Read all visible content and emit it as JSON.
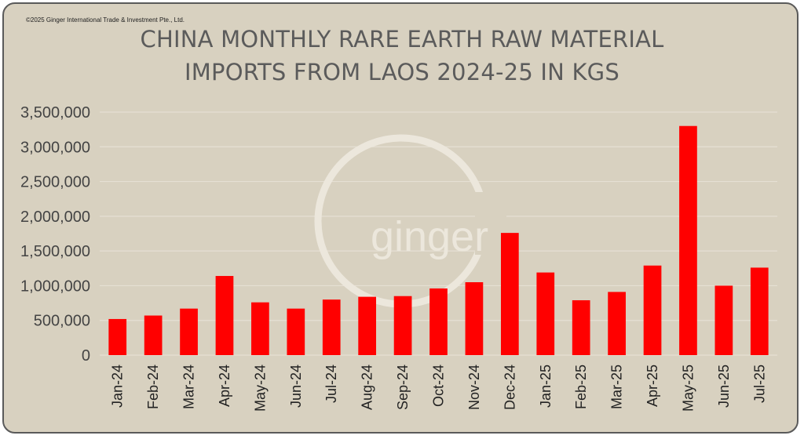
{
  "copyright": "©2025 Ginger International Trade & Investment Pte., Ltd.",
  "watermark": "ginger",
  "colors": {
    "bar": "#ff0000",
    "background": "#d8d1c0",
    "grid": "#e6e0d4",
    "title": "#5b5b5b"
  },
  "chart_data": {
    "type": "bar",
    "title_lines": [
      "CHINA MONTHLY RARE EARTH RAW MATERIAL",
      "IMPORTS FROM LAOS 2024-25 IN KGS"
    ],
    "xlabel": "",
    "ylabel": "",
    "ylim": [
      0,
      3500000
    ],
    "yticks": [
      0,
      500000,
      1000000,
      1500000,
      2000000,
      2500000,
      3000000,
      3500000
    ],
    "ytick_labels": [
      "0",
      "500,000",
      "1,000,000",
      "1,500,000",
      "2,000,000",
      "2,500,000",
      "3,000,000",
      "3,500,000"
    ],
    "grid": true,
    "legend": "none",
    "categories": [
      "Jan-24",
      "Feb-24",
      "Mar-24",
      "Apr-24",
      "May-24",
      "Jun-24",
      "Jul-24",
      "Aug-24",
      "Sep-24",
      "Oct-24",
      "Nov-24",
      "Dec-24",
      "Jan-25",
      "Feb-25",
      "Mar-25",
      "Apr-25",
      "May-25",
      "Jun-25",
      "Jul-25"
    ],
    "values": [
      520000,
      570000,
      670000,
      1140000,
      760000,
      670000,
      800000,
      840000,
      850000,
      960000,
      1050000,
      1760000,
      1190000,
      790000,
      910000,
      1290000,
      3300000,
      1000000,
      1260000
    ]
  }
}
